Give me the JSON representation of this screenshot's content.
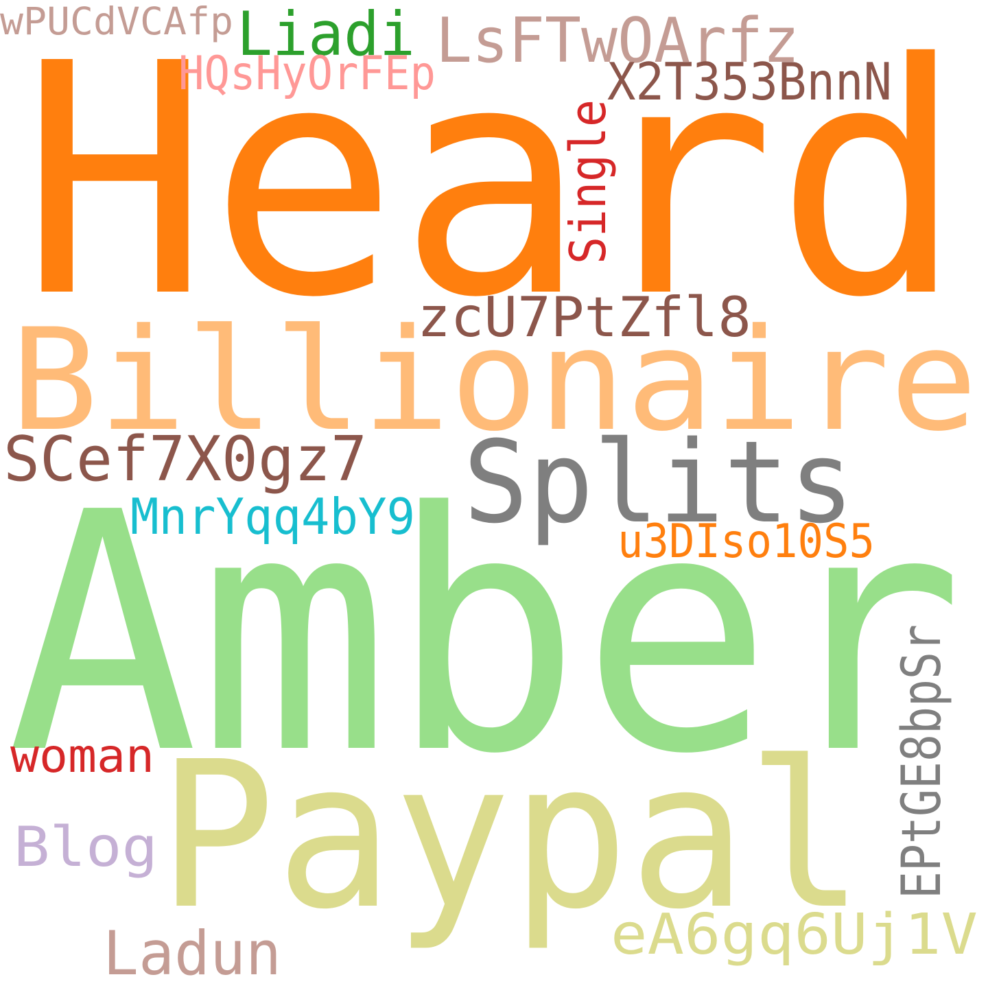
{
  "words": [
    "Heard",
    "Billionaire",
    "Amber",
    "Paypal",
    "Splits",
    "SCef7X0gz7",
    "zcU7PtZfl8",
    "Liadi",
    "LsFTwOArfz",
    "wPUCdVCAfp",
    "HQsHyOrFEp",
    "X2T353BnnN",
    "Single",
    "MnrYqq4bY9",
    "u3DIso10S5",
    "woman",
    "Blog",
    "EPtGE8bpSr",
    "Ladun",
    "eA6gq6Uj1V"
  ]
}
